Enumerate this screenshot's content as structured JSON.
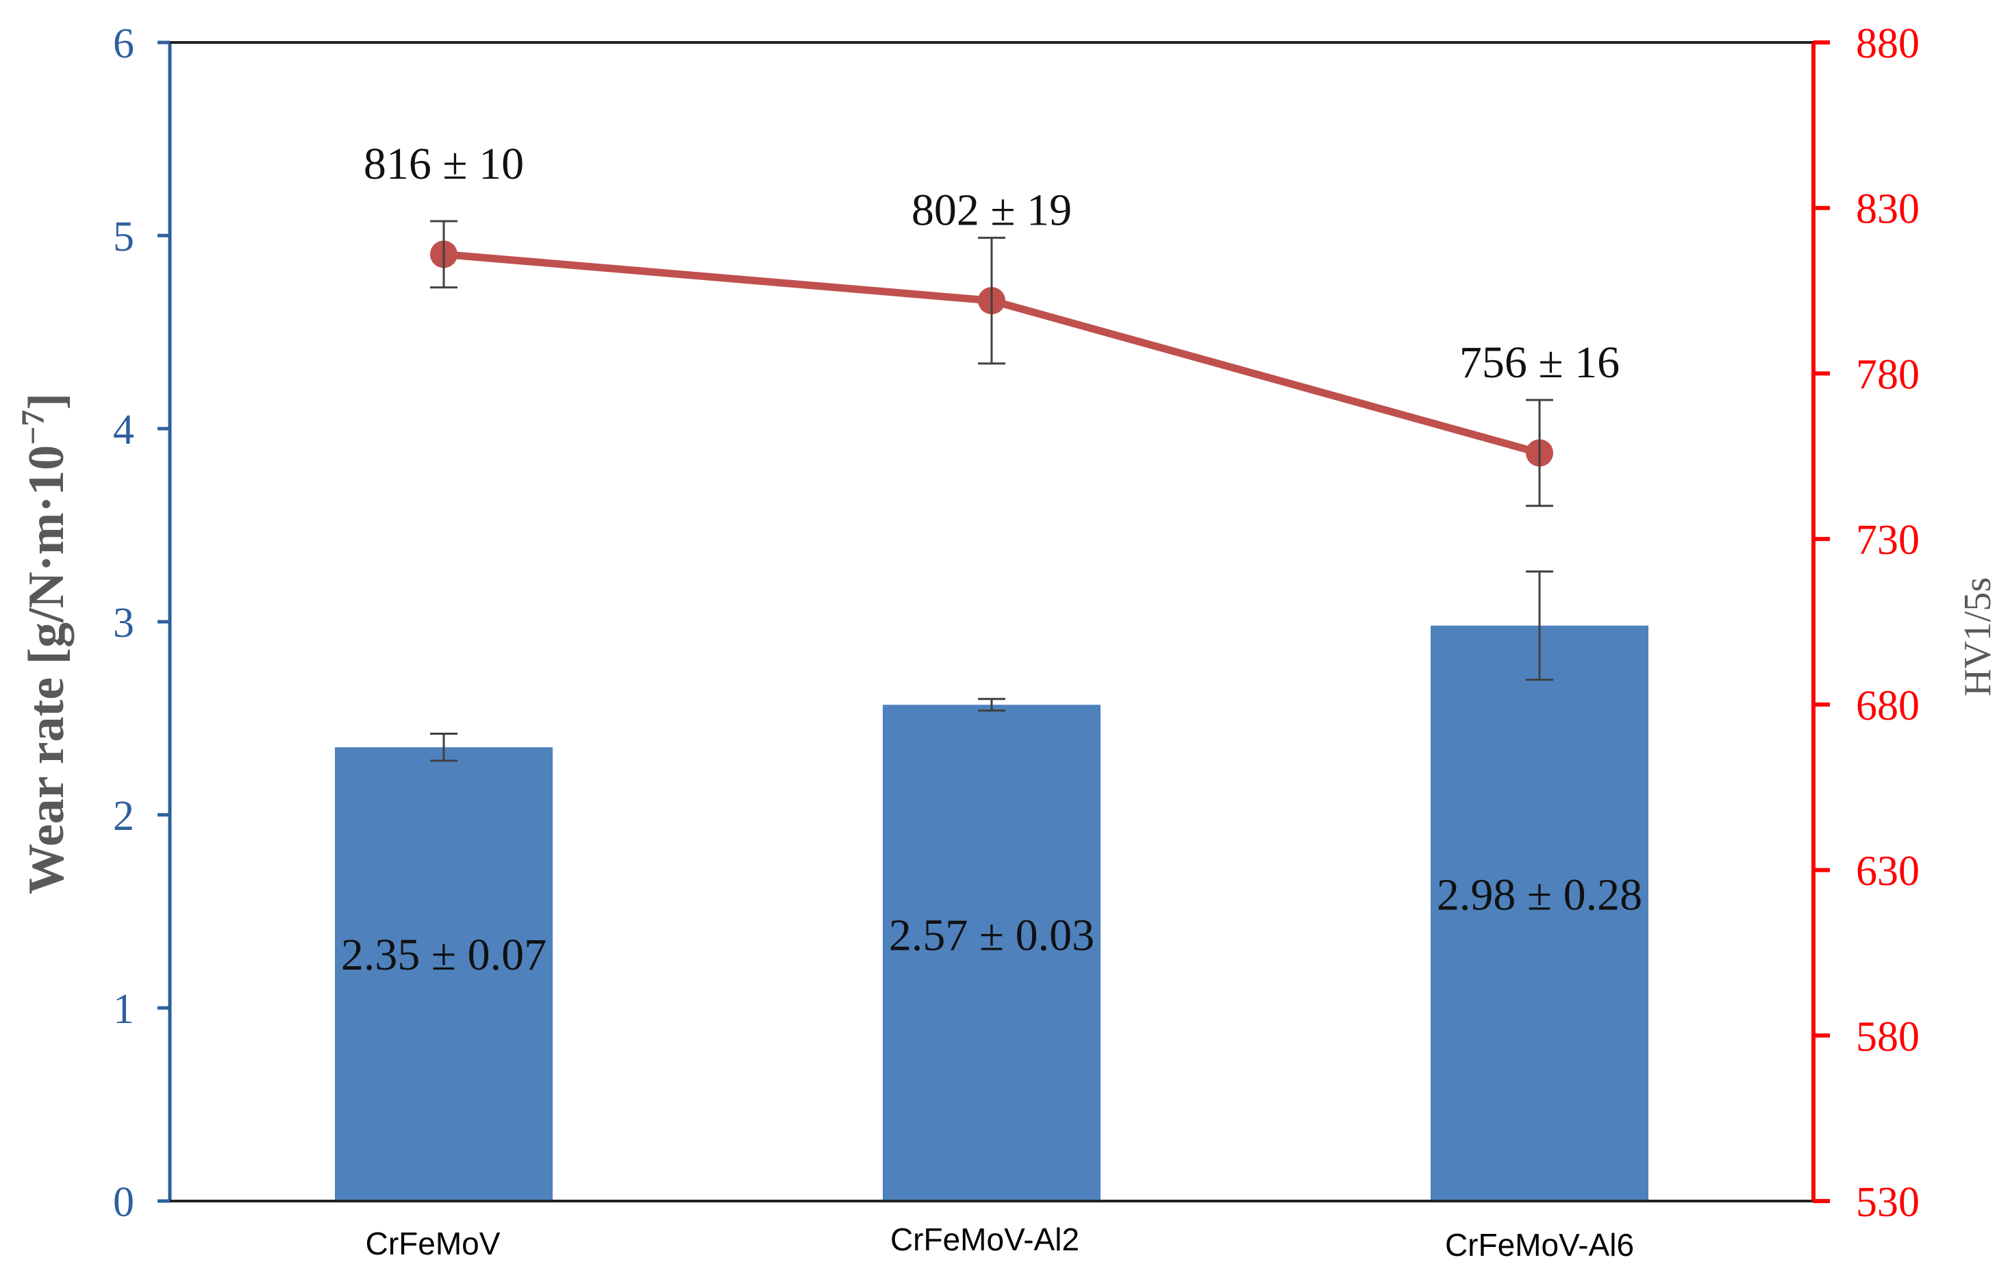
{
  "chart_data": {
    "type": "bar",
    "categories": [
      "CrFeMoV",
      "CrFeMoV-Al2",
      "CrFeMoV-Al6"
    ],
    "xlabel": "",
    "ylabel": "Wear rate [g/N·m·10⁻⁷]",
    "ylabel_parts": {
      "main": "Wear rate [g/N·m·10",
      "sup": "−7",
      "tail": "]"
    },
    "ylim": [
      0,
      6
    ],
    "yticks": [
      "0",
      "1",
      "2",
      "3",
      "4",
      "5",
      "6"
    ],
    "y2label": "HV1/5s",
    "y2lim": [
      530,
      880
    ],
    "y2ticks": [
      "530",
      "580",
      "630",
      "680",
      "730",
      "780",
      "830",
      "880"
    ],
    "grid": false,
    "legend": "none",
    "colors": {
      "bars": "#4f81bd",
      "line": "#c0504d",
      "left_axis": "#2e5f9e",
      "right_axis": "#ff0000",
      "error_bar": "#404040",
      "axis_title": "#595959"
    },
    "series": [
      {
        "type": "bar",
        "axis": "left",
        "values": [
          2.35,
          2.57,
          2.98
        ],
        "errors": [
          0.07,
          0.03,
          0.28
        ],
        "data_labels": [
          "2.35 ± 0.07",
          "2.57 ± 0.03",
          "2.98 ± 0.28"
        ]
      },
      {
        "type": "line",
        "axis": "right",
        "values": [
          816,
          802,
          756
        ],
        "errors": [
          10,
          19,
          16
        ],
        "data_labels": [
          "816 ± 10",
          "802 ± 19",
          "756 ± 16"
        ]
      }
    ]
  }
}
